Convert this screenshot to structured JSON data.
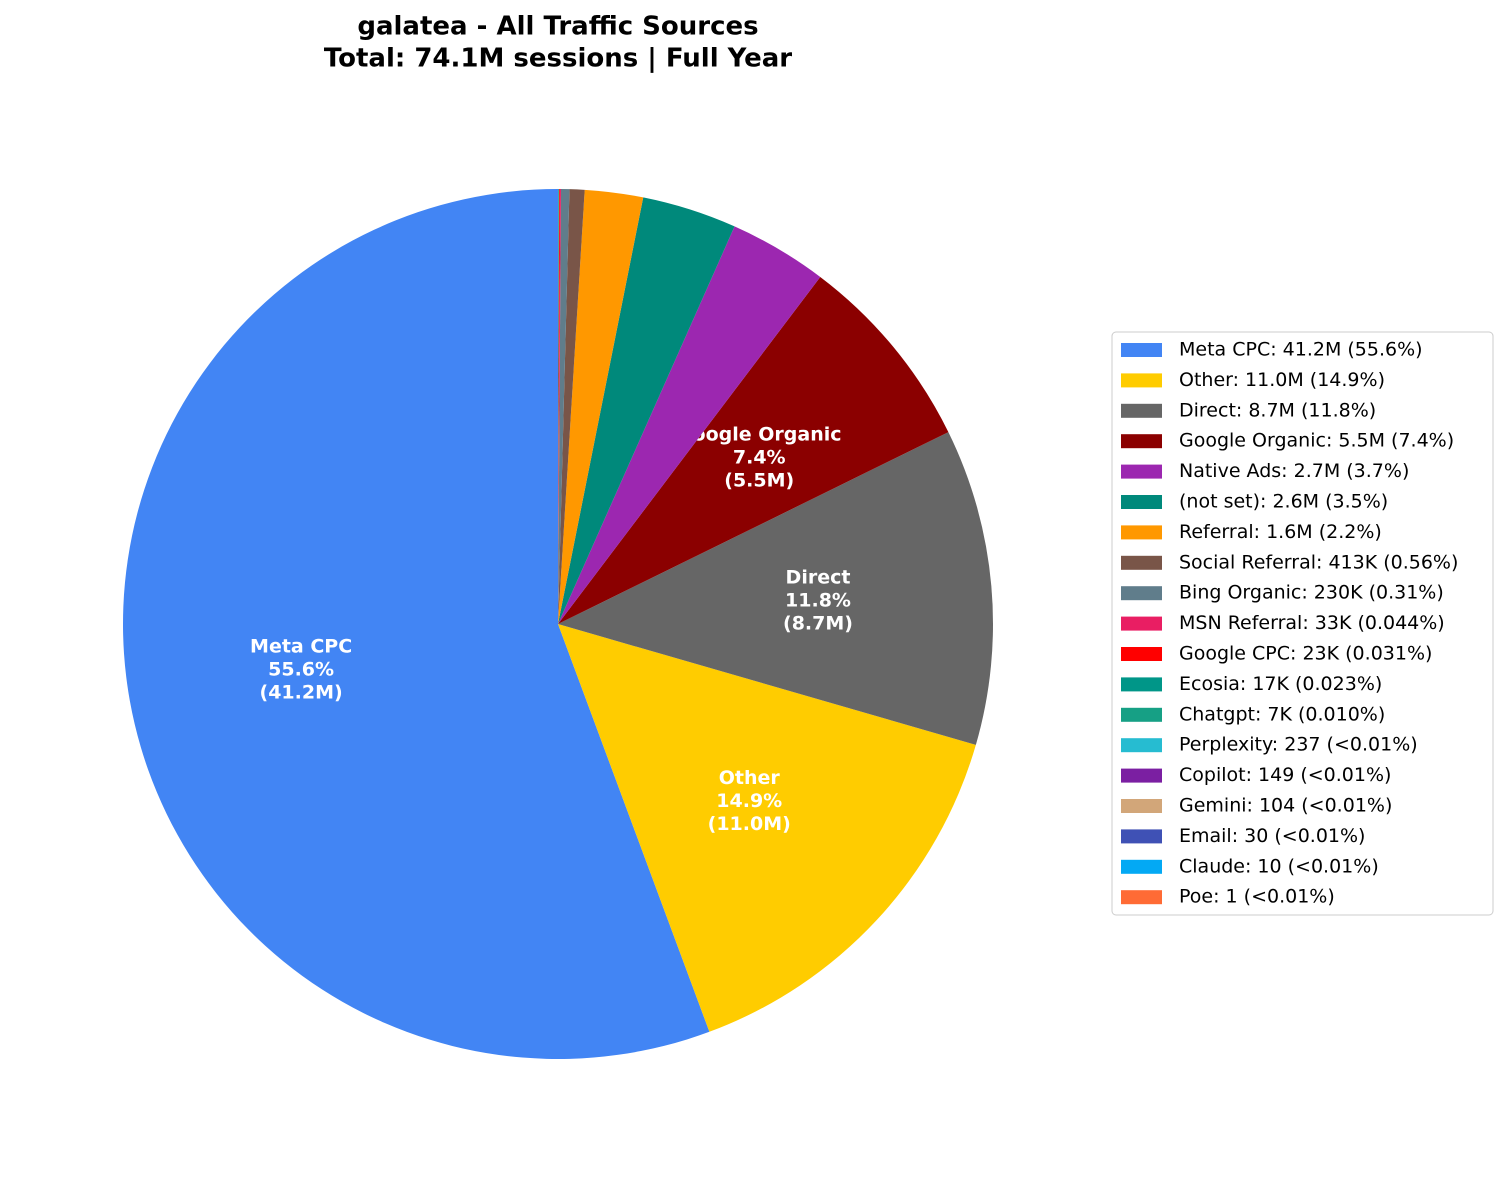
{
  "chart_data": {
    "type": "pie",
    "title": "galatea - All Traffic Sources",
    "subtitle": "Total: 74.1M sessions | Full Year",
    "categories": [
      "Meta CPC",
      "Other",
      "Direct",
      "Google Organic",
      "Native Ads",
      "(not set)",
      "Referral",
      "Social Referral",
      "Bing Organic",
      "MSN Referral",
      "Google CPC",
      "Ecosia",
      "Chatgpt",
      "Perplexity",
      "Copilot",
      "Gemini",
      "Email",
      "Claude",
      "Poe"
    ],
    "values": [
      41200000,
      11000000,
      8700000,
      5500000,
      2700000,
      2600000,
      1600000,
      413000,
      230000,
      33000,
      23000,
      17000,
      7000,
      237,
      149,
      104,
      30,
      10,
      1
    ],
    "colors": [
      "#4285f4",
      "#ffcc00",
      "#666666",
      "#8b0000",
      "#9c27b0",
      "#00897b",
      "#ff9800",
      "#795548",
      "#607d8b",
      "#e91e63",
      "#ff0000",
      "#009688",
      "#16a085",
      "#26bcd1",
      "#7b1fa2",
      "#d2a679",
      "#3f51b5",
      "#03a9f4",
      "#ff6b35"
    ],
    "legend_labels": [
      "Meta CPC: 41.2M (55.6%)",
      "Other: 11.0M (14.9%)",
      "Direct: 8.7M (11.8%)",
      "Google Organic: 5.5M (7.4%)",
      "Native Ads: 2.7M (3.7%)",
      "(not set): 2.6M (3.5%)",
      "Referral: 1.6M (2.2%)",
      "Social Referral: 413K (0.56%)",
      "Bing Organic: 230K (0.31%)",
      "MSN Referral: 33K (0.044%)",
      "Google CPC: 23K (0.031%)",
      "Ecosia: 17K (0.023%)",
      "Chatgpt: 7K (0.010%)",
      "Perplexity: 237 (<0.01%)",
      "Copilot: 149 (<0.01%)",
      "Gemini: 104 (<0.01%)",
      "Email: 30 (<0.01%)",
      "Claude: 10 (<0.01%)",
      "Poe: 1 (<0.01%)"
    ],
    "slice_labels": [
      [
        "Meta CPC",
        "55.6%",
        "(41.2M)"
      ],
      [
        "Other",
        "14.9%",
        "(11.0M)"
      ],
      [
        "Direct",
        "11.8%",
        "(8.7M)"
      ],
      [
        "Google Organic",
        "7.4%",
        "(5.5M)"
      ],
      null,
      null,
      null,
      null,
      null,
      null,
      null,
      null,
      null,
      null,
      null,
      null,
      null,
      null,
      null
    ],
    "legend_position": "right"
  }
}
